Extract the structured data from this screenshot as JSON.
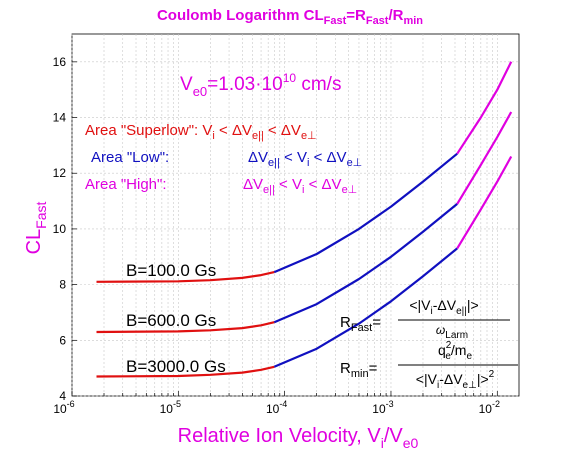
{
  "chart_data": {
    "type": "line",
    "title": {
      "main": "Coulomb Logarithm CL",
      "sub1": "Fast",
      "mid": "=R",
      "sub2": "Fast",
      "tail": "/R",
      "sub3": "min"
    },
    "xlabel": {
      "main": "Relative Ion Velocity, V",
      "sub1": "i",
      "mid": "/V",
      "sub2": "e0"
    },
    "ylabel": {
      "main": "CL",
      "sub": "Fast"
    },
    "x_scale": "log",
    "xlim": [
      1e-06,
      0.016
    ],
    "ylim": [
      4,
      17
    ],
    "grid": true,
    "x_ticks": [
      {
        "v": 1e-06,
        "base": "10",
        "exp": "-6"
      },
      {
        "v": 1e-05,
        "base": "10",
        "exp": "-5"
      },
      {
        "v": 0.0001,
        "base": "10",
        "exp": "-4"
      },
      {
        "v": 0.001,
        "base": "10",
        "exp": "-3"
      },
      {
        "v": 0.01,
        "base": "10",
        "exp": "-2"
      }
    ],
    "y_ticks": [
      4,
      6,
      8,
      10,
      12,
      14,
      16
    ],
    "colors": {
      "superlow": "#e01010",
      "low": "#1010c0",
      "title": "#e000e0"
    },
    "series": [
      {
        "name": "B=100.0 Gs",
        "superlow": {
          "x": [
            1.7e-06,
            1e-05,
            2e-05,
            4e-05,
            6e-05,
            8e-05
          ],
          "y": [
            8.1,
            8.12,
            8.16,
            8.24,
            8.34,
            8.45
          ]
        },
        "low": {
          "x": [
            8e-05,
            0.0002,
            0.0005,
            0.001,
            0.002,
            0.0042
          ],
          "y": [
            8.45,
            9.1,
            10.0,
            10.8,
            11.7,
            12.7
          ]
        },
        "high": {
          "x": [
            0.0042,
            0.007,
            0.01,
            0.0135
          ],
          "y": [
            12.7,
            14.0,
            15.0,
            16.0
          ]
        }
      },
      {
        "name": "B=600.0 Gs",
        "superlow": {
          "x": [
            1.7e-06,
            1e-05,
            2e-05,
            4e-05,
            6e-05,
            8e-05
          ],
          "y": [
            6.3,
            6.32,
            6.36,
            6.44,
            6.54,
            6.65
          ]
        },
        "low": {
          "x": [
            8e-05,
            0.0002,
            0.0005,
            0.001,
            0.002,
            0.0042
          ],
          "y": [
            6.65,
            7.3,
            8.2,
            9.0,
            9.9,
            10.9
          ]
        },
        "high": {
          "x": [
            0.0042,
            0.007,
            0.01,
            0.0135
          ],
          "y": [
            10.9,
            12.3,
            13.3,
            14.2
          ]
        }
      },
      {
        "name": "B=3000.0 Gs",
        "superlow": {
          "x": [
            1.7e-06,
            1e-05,
            2e-05,
            4e-05,
            6e-05,
            8e-05
          ],
          "y": [
            4.7,
            4.72,
            4.76,
            4.84,
            4.94,
            5.05
          ]
        },
        "low": {
          "x": [
            8e-05,
            0.0002,
            0.0005,
            0.001,
            0.002,
            0.0042
          ],
          "y": [
            5.05,
            5.7,
            6.6,
            7.4,
            8.3,
            9.3
          ]
        },
        "high": {
          "x": [
            0.0042,
            0.007,
            0.01,
            0.0135
          ],
          "y": [
            9.3,
            10.7,
            11.7,
            12.6
          ]
        }
      }
    ],
    "annotations": {
      "ve0": {
        "main": "V",
        "sub": "e0",
        "mid": "=1.03·10",
        "exp": "10",
        "tail": " cm/s"
      },
      "superlow": {
        "label": "Area \"Superlow\": V",
        "s1": "i",
        "t1": " < ΔV",
        "s2": "e||",
        "t2": " < ΔV",
        "s3": "e⊥"
      },
      "low": {
        "label": "Area \"Low\":",
        "t0": "ΔV",
        "s1": "e||",
        "t1": " < V",
        "s2": "i",
        "t2": " < ΔV",
        "s3": "e⊥"
      },
      "high": {
        "label": "Area \"High\":",
        "t0": "ΔV",
        "s1": "e||",
        "t1": " < V",
        "s2": "i",
        "t2": " < ΔV",
        "s3": "e⊥"
      },
      "rfast": {
        "lhs": "R",
        "lhs_sub": "Fast",
        "eq": "=",
        "num": "<|V",
        "num_s1": "i",
        "num_t1": "-ΔV",
        "num_s2": "e||",
        "num_t2": "|>",
        "den": "ω",
        "den_sub": "Larm"
      },
      "rmin": {
        "lhs": "R",
        "lhs_sub": "min",
        "eq": "=",
        "num": "q",
        "num_sup": "2",
        "num_sub": "e",
        "num_t1": "/m",
        "num_s2": "e",
        "den": "<|V",
        "den_s1": "i",
        "den_t1": "-ΔV",
        "den_s2": "e⊥",
        "den_t2": "|>",
        "den_sup": "2"
      }
    }
  }
}
